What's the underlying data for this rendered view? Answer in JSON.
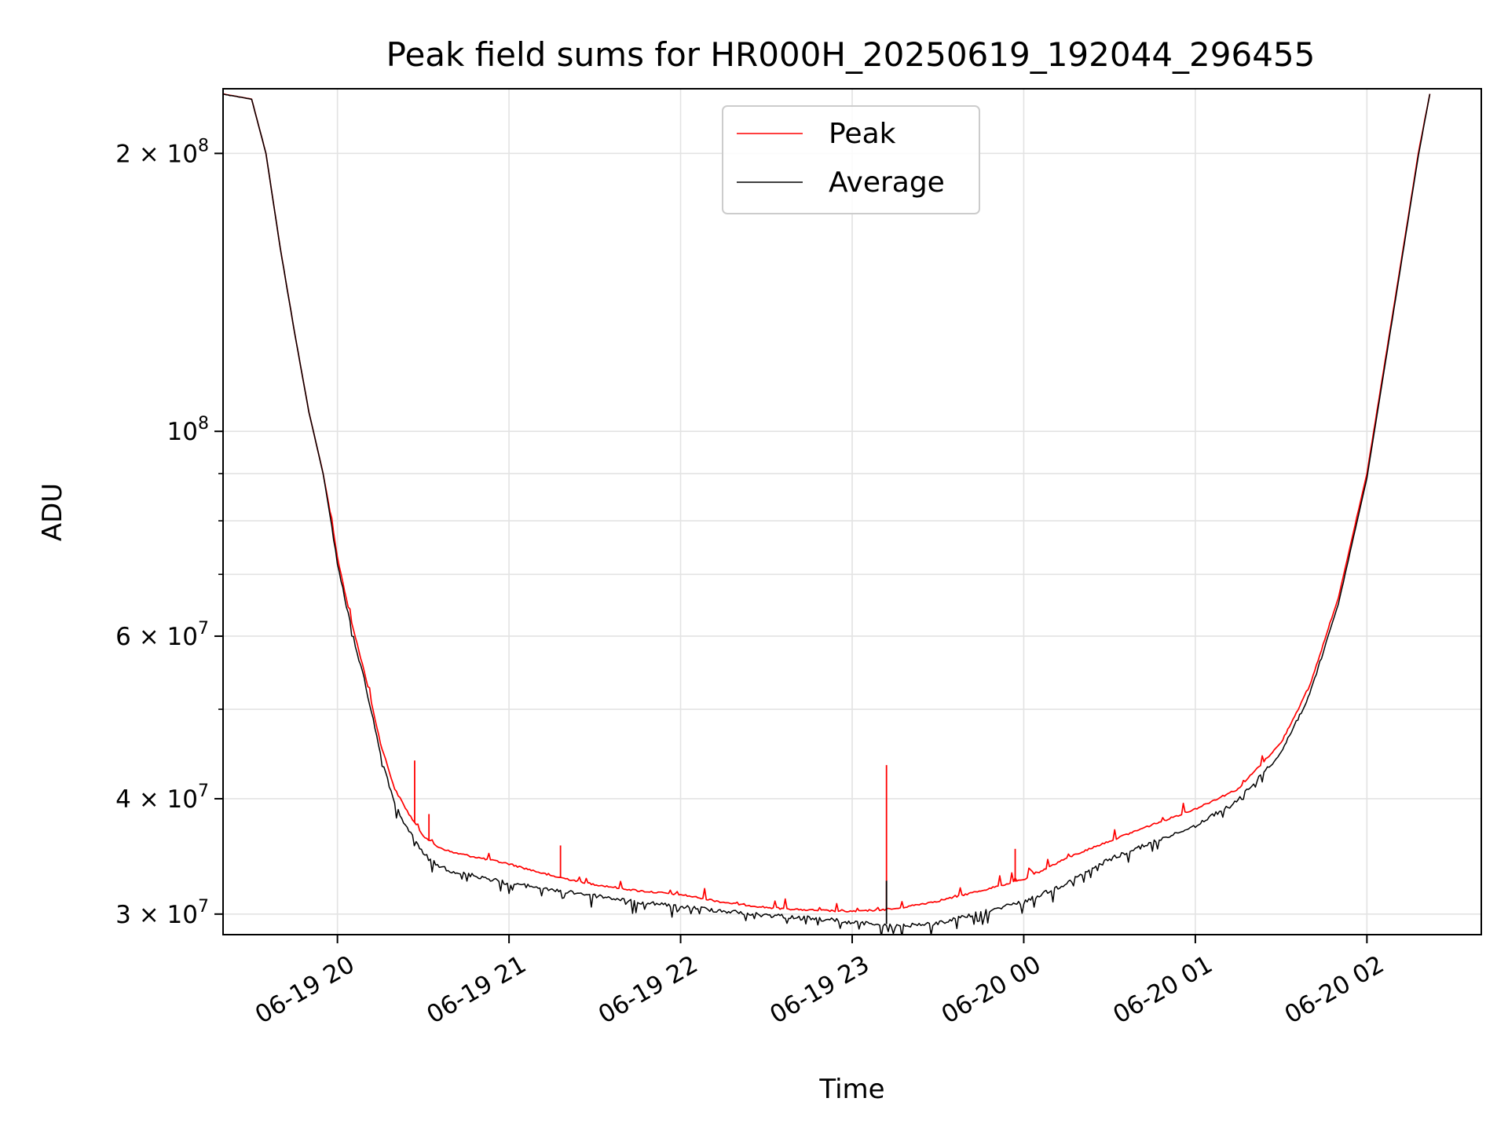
{
  "chart_data": {
    "type": "line",
    "title": "Peak field sums for HR000H_20250619_192044_296455",
    "xlabel": "Time",
    "ylabel": "ADU",
    "y_scale": "log",
    "xlim": [
      "2025-06-19 19:20",
      "2025-06-20 02:40"
    ],
    "ylim": [
      28500000,
      235000000
    ],
    "grid": true,
    "legend_position": "top-center",
    "x_ticks": [
      {
        "time": "2025-06-19 20:00",
        "label": "06-19 20"
      },
      {
        "time": "2025-06-19 21:00",
        "label": "06-19 21"
      },
      {
        "time": "2025-06-19 22:00",
        "label": "06-19 22"
      },
      {
        "time": "2025-06-19 23:00",
        "label": "06-19 23"
      },
      {
        "time": "2025-06-20 00:00",
        "label": "06-20 00"
      },
      {
        "time": "2025-06-20 01:00",
        "label": "06-20 01"
      },
      {
        "time": "2025-06-20 02:00",
        "label": "06-20 02"
      }
    ],
    "y_ticks": [
      {
        "value": 30000000,
        "mantissa": "3",
        "exponent": "7"
      },
      {
        "value": 40000000,
        "mantissa": "4",
        "exponent": "7"
      },
      {
        "value": 60000000,
        "mantissa": "6",
        "exponent": "7"
      },
      {
        "value": 100000000,
        "mantissa": "",
        "exponent": "8"
      },
      {
        "value": 200000000,
        "mantissa": "2",
        "exponent": "8"
      }
    ],
    "series": [
      {
        "name": "Peak",
        "color": "#ff0000",
        "points": [
          [
            "2025-06-19 19:20",
            232000000
          ],
          [
            "2025-06-19 19:30",
            229000000
          ],
          [
            "2025-06-19 19:35",
            200000000
          ],
          [
            "2025-06-19 19:40",
            158000000
          ],
          [
            "2025-06-19 19:45",
            128000000
          ],
          [
            "2025-06-19 19:50",
            105000000
          ],
          [
            "2025-06-19 19:55",
            90000000
          ],
          [
            "2025-06-19 19:58",
            80000000
          ],
          [
            "2025-06-19 20:00",
            73000000
          ],
          [
            "2025-06-19 20:05",
            62000000
          ],
          [
            "2025-06-19 20:10",
            54000000
          ],
          [
            "2025-06-19 20:15",
            46000000
          ],
          [
            "2025-06-19 20:20",
            41000000
          ],
          [
            "2025-06-19 20:25",
            38500000
          ],
          [
            "2025-06-19 20:30",
            36500000
          ],
          [
            "2025-06-19 20:35",
            35500000
          ],
          [
            "2025-06-19 20:40",
            35000000
          ],
          [
            "2025-06-19 20:50",
            34500000
          ],
          [
            "2025-06-19 21:00",
            34000000
          ],
          [
            "2025-06-19 21:15",
            33000000
          ],
          [
            "2025-06-19 21:30",
            32300000
          ],
          [
            "2025-06-19 21:45",
            31800000
          ],
          [
            "2025-06-19 22:00",
            31500000
          ],
          [
            "2025-06-19 22:15",
            30900000
          ],
          [
            "2025-06-19 22:30",
            30500000
          ],
          [
            "2025-06-19 22:45",
            30300000
          ],
          [
            "2025-06-19 23:00",
            30200000
          ],
          [
            "2025-06-19 23:15",
            30400000
          ],
          [
            "2025-06-19 23:30",
            31000000
          ],
          [
            "2025-06-19 23:45",
            31800000
          ],
          [
            "2025-06-20 00:00",
            32700000
          ],
          [
            "2025-06-20 00:15",
            34500000
          ],
          [
            "2025-06-20 00:30",
            36000000
          ],
          [
            "2025-06-20 00:45",
            37500000
          ],
          [
            "2025-06-20 01:00",
            39000000
          ],
          [
            "2025-06-20 01:15",
            41000000
          ],
          [
            "2025-06-20 01:30",
            46000000
          ],
          [
            "2025-06-20 01:40",
            53000000
          ],
          [
            "2025-06-20 01:50",
            66000000
          ],
          [
            "2025-06-20 02:00",
            90000000
          ],
          [
            "2025-06-20 02:10",
            140000000
          ],
          [
            "2025-06-20 02:18",
            200000000
          ],
          [
            "2025-06-20 02:22",
            232000000
          ]
        ]
      },
      {
        "name": "Average",
        "color": "#000000",
        "points": [
          [
            "2025-06-19 19:20",
            232000000
          ],
          [
            "2025-06-19 19:30",
            229000000
          ],
          [
            "2025-06-19 19:35",
            200000000
          ],
          [
            "2025-06-19 19:40",
            158000000
          ],
          [
            "2025-06-19 19:45",
            128000000
          ],
          [
            "2025-06-19 19:50",
            105000000
          ],
          [
            "2025-06-19 19:55",
            90000000
          ],
          [
            "2025-06-19 19:58",
            79000000
          ],
          [
            "2025-06-19 20:00",
            72000000
          ],
          [
            "2025-06-19 20:05",
            61000000
          ],
          [
            "2025-06-19 20:10",
            53000000
          ],
          [
            "2025-06-19 20:15",
            45000000
          ],
          [
            "2025-06-19 20:20",
            39500000
          ],
          [
            "2025-06-19 20:25",
            37000000
          ],
          [
            "2025-06-19 20:30",
            35000000
          ],
          [
            "2025-06-19 20:35",
            34000000
          ],
          [
            "2025-06-19 20:40",
            33500000
          ],
          [
            "2025-06-19 20:50",
            33000000
          ],
          [
            "2025-06-19 21:00",
            32500000
          ],
          [
            "2025-06-19 21:15",
            32000000
          ],
          [
            "2025-06-19 21:30",
            31500000
          ],
          [
            "2025-06-19 21:45",
            31000000
          ],
          [
            "2025-06-19 22:00",
            30700000
          ],
          [
            "2025-06-19 22:15",
            30300000
          ],
          [
            "2025-06-19 22:30",
            30000000
          ],
          [
            "2025-06-19 22:45",
            29800000
          ],
          [
            "2025-06-19 23:00",
            29500000
          ],
          [
            "2025-06-19 23:15",
            29200000
          ],
          [
            "2025-06-19 23:30",
            29400000
          ],
          [
            "2025-06-19 23:45",
            30200000
          ],
          [
            "2025-06-20 00:00",
            31000000
          ],
          [
            "2025-06-20 00:15",
            32500000
          ],
          [
            "2025-06-20 00:30",
            34500000
          ],
          [
            "2025-06-20 00:45",
            36000000
          ],
          [
            "2025-06-20 01:00",
            37500000
          ],
          [
            "2025-06-20 01:15",
            40000000
          ],
          [
            "2025-06-20 01:30",
            45000000
          ],
          [
            "2025-06-20 01:40",
            52000000
          ],
          [
            "2025-06-20 01:50",
            65000000
          ],
          [
            "2025-06-20 02:00",
            89000000
          ],
          [
            "2025-06-20 02:10",
            139000000
          ],
          [
            "2025-06-20 02:18",
            199000000
          ],
          [
            "2025-06-20 02:22",
            232000000
          ]
        ]
      }
    ],
    "spikes": [
      {
        "series": "Peak",
        "time": "2025-06-19 20:27",
        "value": 44000000
      },
      {
        "series": "Peak",
        "time": "2025-06-19 20:32",
        "value": 38500000
      },
      {
        "series": "Peak",
        "time": "2025-06-19 21:18",
        "value": 35600000
      },
      {
        "series": "Peak",
        "time": "2025-06-19 23:12",
        "value": 43500000
      },
      {
        "series": "Peak",
        "time": "2025-06-19 23:57",
        "value": 35300000
      },
      {
        "series": "Average",
        "time": "2025-06-19 23:12",
        "value": 32600000
      }
    ]
  }
}
